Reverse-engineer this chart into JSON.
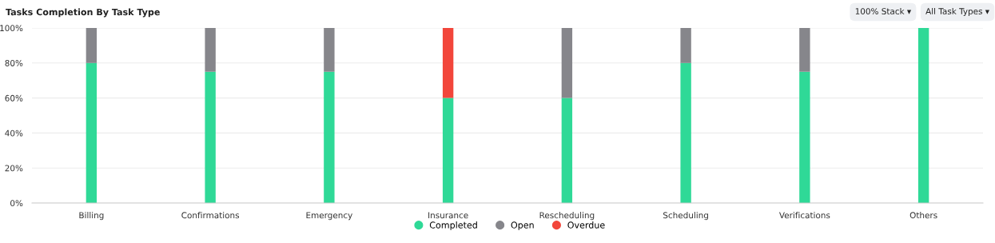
{
  "chart_data": {
    "type": "bar",
    "title": "Tasks Completion By Task Type",
    "categories": [
      "Billing",
      "Confirmations",
      "Emergency",
      "Insurance",
      "Rescheduling",
      "Scheduling",
      "Verifications",
      "Others"
    ],
    "series": [
      {
        "name": "Completed",
        "color": "#2fd997",
        "values": [
          80,
          75,
          75,
          60,
          60,
          80,
          75,
          100
        ]
      },
      {
        "name": "Open",
        "color": "#86868b",
        "values": [
          20,
          25,
          25,
          0,
          40,
          20,
          25,
          0
        ]
      },
      {
        "name": "Overdue",
        "color": "#f2463b",
        "values": [
          0,
          0,
          0,
          40,
          0,
          0,
          0,
          0
        ]
      }
    ],
    "stacked": true,
    "ylim": [
      0,
      100
    ],
    "yticks": [
      {
        "value": 0,
        "label": "0%"
      },
      {
        "value": 20,
        "label": "20%"
      },
      {
        "value": 40,
        "label": "40%"
      },
      {
        "value": 60,
        "label": "60%"
      },
      {
        "value": 80,
        "label": "80%"
      },
      {
        "value": 100,
        "label": "100%"
      }
    ],
    "grid": "y",
    "legend": "bottom",
    "annotations": [
      "100% Stack ▾",
      "All Task Types ▾"
    ]
  }
}
